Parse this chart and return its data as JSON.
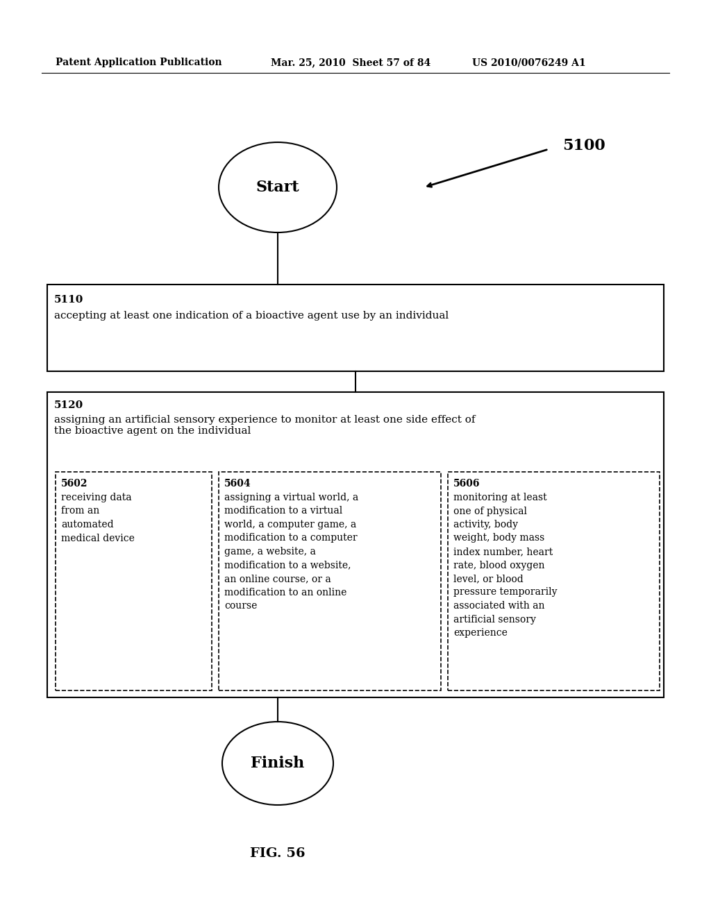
{
  "bg_color": "#ffffff",
  "header_left": "Patent Application Publication",
  "header_mid": "Mar. 25, 2010  Sheet 57 of 84",
  "header_right": "US 2010/0076249 A1",
  "fig_label": "5100",
  "start_label": "Start",
  "finish_label": "Finish",
  "fig_caption": "FIG. 56",
  "box1_id": "5110",
  "box1_text": "accepting at least one indication of a bioactive agent use by an individual",
  "box2_id": "5120",
  "box2_header": "assigning an artificial sensory experience to monitor at least one side effect of\nthe bioactive agent on the individual",
  "sub1_id": "5602",
  "sub1_text": "receiving data\nfrom an\nautomated\nmedical device",
  "sub2_id": "5604",
  "sub2_text": "assigning a virtual world, a\nmodification to a virtual\nworld, a computer game, a\nmodification to a computer\ngame, a website, a\nmodification to a website,\nan online course, or a\nmodification to an online\ncourse",
  "sub3_id": "5606",
  "sub3_text": "monitoring at least\none of physical\nactivity, body\nweight, body mass\nindex number, heart\nrate, blood oxygen\nlevel, or blood\npressure temporarily\nassociated with an\nartificial sensory\nexperience"
}
